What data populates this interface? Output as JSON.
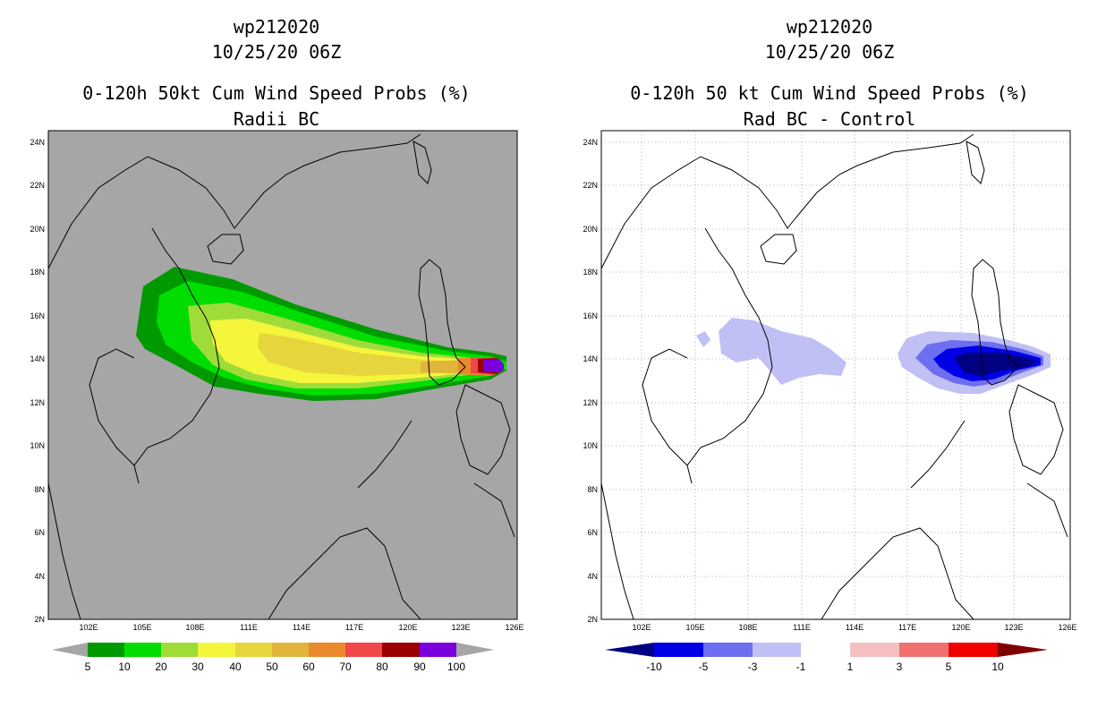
{
  "left_panel": {
    "title_line1": "wp212020",
    "title_line2": "10/25/20 06Z",
    "title_line3": "0-120h 50kt Cum Wind Speed Probs (%)",
    "title_line4": "Radii BC",
    "background": "#a6a6a6",
    "colorbar": {
      "labels": [
        "5",
        "10",
        "20",
        "30",
        "40",
        "50",
        "60",
        "70",
        "80",
        "90",
        "100"
      ],
      "colors": [
        "#009a00",
        "#00dd00",
        "#9fdc3a",
        "#f5f53c",
        "#e6d53c",
        "#e0b53a",
        "#ea8a2c",
        "#f04848",
        "#9b0000",
        "#7a00dc"
      ],
      "below_color": "#a6a6a6",
      "above_color": "#a6a6a6"
    }
  },
  "right_panel": {
    "title_line1": "wp212020",
    "title_line2": "10/25/20 06Z",
    "title_line3": "0-120h 50 kt Cum Wind Speed Probs (%)",
    "title_line4": "Rad BC - Control",
    "background": "#ffffff",
    "colorbar": {
      "labels": [
        "-10",
        "-5",
        "-3",
        "-1",
        "1",
        "3",
        "5",
        "10"
      ],
      "colors": [
        "#0000e6",
        "#6e6ef0",
        "#c0c0f5",
        "#ffffff",
        "#f5c0c0",
        "#f07070",
        "#f00000"
      ],
      "below_color": "#000080",
      "above_color": "#800000"
    }
  },
  "map": {
    "lon_ticks": [
      "102E",
      "105E",
      "108E",
      "111E",
      "114E",
      "117E",
      "120E",
      "123E",
      "126E"
    ],
    "lat_ticks": [
      "2N",
      "4N",
      "6N",
      "8N",
      "10N",
      "12N",
      "14N",
      "16N",
      "18N",
      "20N",
      "22N",
      "24N"
    ],
    "lon_range": [
      99.5,
      126
    ],
    "lat_range": [
      2,
      24.5
    ]
  }
}
